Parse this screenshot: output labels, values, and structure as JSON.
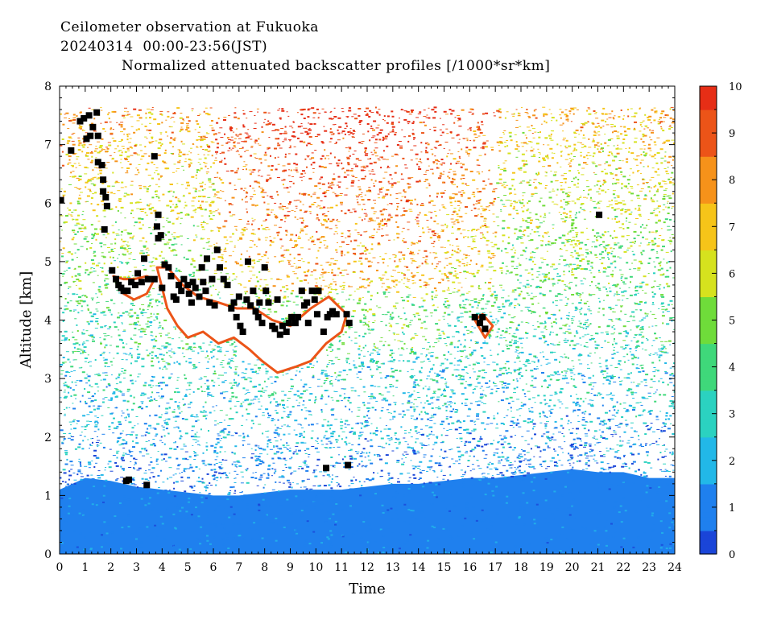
{
  "header": {
    "line1": "Ceilometer observation at Fukuoka",
    "line2": "20240314  00:00-23:56(JST)",
    "line3": "Normalized attenuated backscatter profiles [/1000*sr*km]"
  },
  "chart_data": {
    "type": "heatmap",
    "title": "Normalized attenuated backscatter profiles [/1000*sr*km]",
    "xlabel": "Time",
    "ylabel": "Altitude [km]",
    "x_ticks": [
      0,
      1,
      2,
      3,
      4,
      5,
      6,
      7,
      8,
      9,
      10,
      11,
      12,
      13,
      14,
      15,
      16,
      17,
      18,
      19,
      20,
      21,
      22,
      23,
      24
    ],
    "x_tick_labels": [
      "0",
      "1",
      "2",
      "3",
      "4",
      "5",
      "6",
      "7",
      "8",
      "9",
      "10",
      "11",
      "12",
      "13",
      "14",
      "15",
      "16",
      "17",
      "18",
      "19",
      "20",
      "21",
      "22",
      "23",
      "24"
    ],
    "y_ticks": [
      0,
      1,
      2,
      3,
      4,
      5,
      6,
      7,
      8
    ],
    "y_tick_labels": [
      "0",
      "1",
      "2",
      "3",
      "4",
      "5",
      "6",
      "7",
      "8"
    ],
    "xlim": [
      0,
      24
    ],
    "ylim": [
      0,
      8
    ],
    "data_top_km": 7.65,
    "colorbar": {
      "ticks": [
        0,
        1,
        2,
        3,
        4,
        5,
        6,
        7,
        8,
        9,
        10
      ],
      "tick_labels": [
        "0",
        "1",
        "2",
        "3",
        "4",
        "5",
        "6",
        "7",
        "8",
        "9",
        "10"
      ],
      "range": [
        0,
        10
      ],
      "colors": [
        "#1a45d8",
        "#1f80ee",
        "#22b8e8",
        "#2bd2c0",
        "#3fd87a",
        "#6fdc3a",
        "#d6e21e",
        "#f6c419",
        "#f6921a",
        "#ec5418",
        "#e62e16"
      ]
    },
    "regions": [
      {
        "kind": "boundary_layer",
        "x": [
          0,
          24
        ],
        "top_km": [
          1.1,
          1.3,
          1.25,
          1.15,
          1.1,
          1.05,
          1.0,
          1.0,
          1.05,
          1.1,
          1.1,
          1.1,
          1.15,
          1.2,
          1.2,
          1.25,
          1.3,
          1.3,
          1.35,
          1.4,
          1.45,
          1.4,
          1.4,
          1.3,
          1.3
        ],
        "value": 1.0
      },
      {
        "kind": "cloud_core",
        "points": [
          [
            3.8,
            4.9
          ],
          [
            4.2,
            4.2
          ],
          [
            4.6,
            3.9
          ],
          [
            5.0,
            3.7
          ],
          [
            5.6,
            3.8
          ],
          [
            6.2,
            3.6
          ],
          [
            6.8,
            3.7
          ],
          [
            7.4,
            3.5
          ],
          [
            7.9,
            3.3
          ],
          [
            8.5,
            3.1
          ],
          [
            9.2,
            3.2
          ],
          [
            9.8,
            3.3
          ],
          [
            10.4,
            3.6
          ],
          [
            11.0,
            3.8
          ],
          [
            11.2,
            4.1
          ],
          [
            10.5,
            4.4
          ],
          [
            9.8,
            4.2
          ],
          [
            9.0,
            3.9
          ],
          [
            8.3,
            4.0
          ],
          [
            7.6,
            4.2
          ],
          [
            6.9,
            4.2
          ],
          [
            6.2,
            4.3
          ],
          [
            5.4,
            4.4
          ],
          [
            4.8,
            4.6
          ],
          [
            4.2,
            4.9
          ]
        ]
      },
      {
        "kind": "cloud_core",
        "points": [
          [
            2.1,
            4.75
          ],
          [
            2.5,
            4.45
          ],
          [
            2.9,
            4.35
          ],
          [
            3.4,
            4.45
          ],
          [
            3.7,
            4.7
          ],
          [
            3.4,
            4.75
          ],
          [
            2.9,
            4.7
          ],
          [
            2.5,
            4.7
          ]
        ]
      },
      {
        "kind": "cloud_core",
        "points": [
          [
            16.2,
            4.0
          ],
          [
            16.6,
            3.7
          ],
          [
            16.9,
            3.9
          ],
          [
            16.5,
            4.1
          ]
        ]
      }
    ],
    "cloud_base_markers": [
      [
        0.05,
        6.05
      ],
      [
        0.45,
        6.9
      ],
      [
        0.8,
        7.4
      ],
      [
        0.95,
        7.45
      ],
      [
        1.05,
        7.1
      ],
      [
        1.15,
        7.5
      ],
      [
        1.3,
        7.3
      ],
      [
        1.45,
        7.55
      ],
      [
        1.2,
        7.15
      ],
      [
        1.5,
        7.15
      ],
      [
        1.5,
        6.7
      ],
      [
        1.65,
        6.65
      ],
      [
        1.7,
        6.4
      ],
      [
        1.7,
        6.2
      ],
      [
        1.8,
        6.1
      ],
      [
        1.85,
        5.95
      ],
      [
        1.75,
        5.55
      ],
      [
        2.05,
        4.85
      ],
      [
        2.2,
        4.7
      ],
      [
        2.3,
        4.6
      ],
      [
        2.4,
        4.55
      ],
      [
        2.5,
        4.5
      ],
      [
        2.65,
        4.5
      ],
      [
        2.8,
        4.65
      ],
      [
        2.95,
        4.6
      ],
      [
        3.05,
        4.8
      ],
      [
        3.2,
        4.65
      ],
      [
        3.3,
        5.05
      ],
      [
        3.45,
        4.7
      ],
      [
        3.7,
        4.7
      ],
      [
        3.8,
        5.6
      ],
      [
        3.85,
        5.4
      ],
      [
        3.95,
        5.45
      ],
      [
        3.85,
        5.8
      ],
      [
        3.7,
        6.8
      ],
      [
        4.0,
        4.55
      ],
      [
        4.1,
        4.95
      ],
      [
        4.25,
        4.9
      ],
      [
        4.35,
        4.75
      ],
      [
        4.45,
        4.4
      ],
      [
        4.55,
        4.35
      ],
      [
        4.65,
        4.6
      ],
      [
        4.75,
        4.5
      ],
      [
        4.85,
        4.7
      ],
      [
        5.0,
        4.6
      ],
      [
        5.05,
        4.45
      ],
      [
        5.15,
        4.3
      ],
      [
        5.2,
        4.65
      ],
      [
        5.3,
        4.55
      ],
      [
        5.45,
        4.4
      ],
      [
        5.55,
        4.9
      ],
      [
        5.6,
        4.65
      ],
      [
        5.7,
        4.5
      ],
      [
        5.75,
        5.05
      ],
      [
        5.85,
        4.3
      ],
      [
        5.95,
        4.7
      ],
      [
        6.05,
        4.25
      ],
      [
        6.15,
        5.2
      ],
      [
        6.25,
        4.9
      ],
      [
        6.4,
        4.7
      ],
      [
        6.55,
        4.6
      ],
      [
        6.7,
        4.2
      ],
      [
        6.8,
        4.3
      ],
      [
        6.9,
        4.05
      ],
      [
        7.0,
        4.4
      ],
      [
        7.05,
        3.9
      ],
      [
        7.15,
        3.8
      ],
      [
        7.3,
        4.35
      ],
      [
        7.35,
        5.0
      ],
      [
        7.45,
        4.25
      ],
      [
        7.55,
        4.5
      ],
      [
        7.65,
        4.15
      ],
      [
        7.75,
        4.05
      ],
      [
        7.8,
        4.3
      ],
      [
        7.9,
        3.95
      ],
      [
        8.0,
        4.9
      ],
      [
        8.05,
        4.5
      ],
      [
        8.15,
        4.3
      ],
      [
        8.3,
        3.9
      ],
      [
        8.4,
        3.85
      ],
      [
        8.5,
        4.35
      ],
      [
        8.6,
        3.75
      ],
      [
        8.7,
        3.9
      ],
      [
        8.85,
        3.8
      ],
      [
        8.95,
        3.95
      ],
      [
        9.05,
        4.05
      ],
      [
        9.2,
        3.95
      ],
      [
        9.3,
        4.05
      ],
      [
        9.45,
        4.5
      ],
      [
        9.55,
        4.25
      ],
      [
        9.65,
        4.3
      ],
      [
        9.7,
        3.95
      ],
      [
        9.85,
        4.5
      ],
      [
        9.95,
        4.35
      ],
      [
        10.05,
        4.1
      ],
      [
        10.1,
        4.5
      ],
      [
        10.3,
        3.8
      ],
      [
        10.45,
        4.05
      ],
      [
        10.55,
        4.1
      ],
      [
        10.65,
        4.15
      ],
      [
        10.8,
        4.1
      ],
      [
        11.2,
        4.1
      ],
      [
        11.3,
        3.95
      ],
      [
        2.6,
        1.25
      ],
      [
        2.7,
        1.27
      ],
      [
        3.4,
        1.18
      ],
      [
        10.4,
        1.47
      ],
      [
        11.25,
        1.52
      ],
      [
        16.2,
        4.05
      ],
      [
        16.4,
        3.95
      ],
      [
        16.5,
        4.05
      ],
      [
        16.6,
        3.85
      ],
      [
        21.05,
        5.8
      ]
    ]
  }
}
